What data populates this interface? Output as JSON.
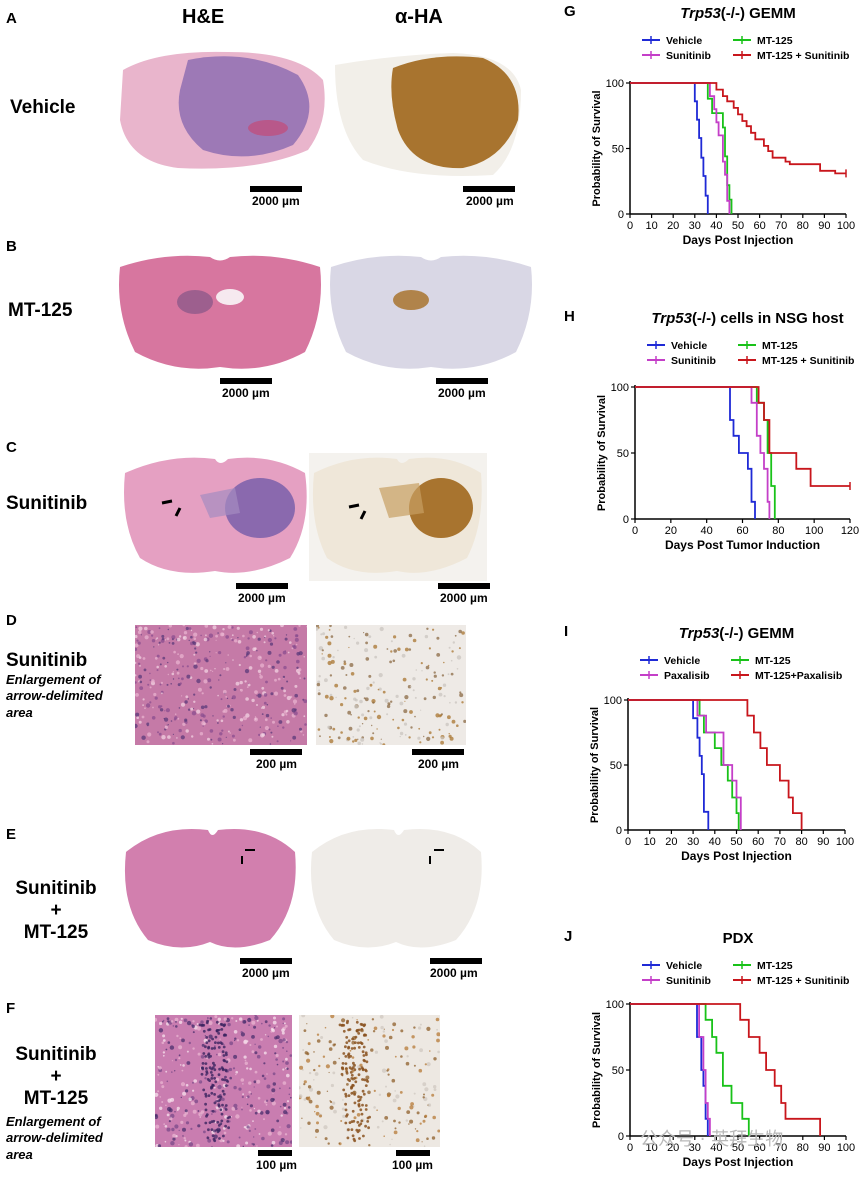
{
  "headers": {
    "he": "H&E",
    "ha": "α-HA"
  },
  "panels": {
    "A": {
      "letter": "A",
      "condition": "Vehicle",
      "scale_he": "2000 µm",
      "scale_ha": "2000 µm"
    },
    "B": {
      "letter": "B",
      "condition": "MT-125",
      "scale_he": "2000 µm",
      "scale_ha": "2000 µm"
    },
    "C": {
      "letter": "C",
      "condition": "Sunitinib",
      "scale_he": "2000 µm",
      "scale_ha": "2000 µm"
    },
    "D": {
      "letter": "D",
      "condition": "Sunitinib",
      "subtitle": [
        "Enlargement of",
        "arrow-delimited",
        "area"
      ],
      "scale_he": "200 µm",
      "scale_ha": "200 µm"
    },
    "E": {
      "letter": "E",
      "condition": [
        "Sunitinib",
        "+",
        "MT-125"
      ],
      "scale_he": "2000 µm",
      "scale_ha": "2000 µm"
    },
    "F": {
      "letter": "F",
      "condition": [
        "Sunitinib",
        "+",
        "MT-125"
      ],
      "subtitle": [
        "Enlargement of",
        "arrow-delimited",
        "area"
      ],
      "scale_he": "100 µm",
      "scale_ha": "100 µm"
    }
  },
  "colors": {
    "vehicle": "#1f2ad6",
    "mt125": "#19c219",
    "sunitinib": "#c43fc8",
    "paxalisib": "#c43fc8",
    "combo": "#c8161c",
    "he_pink": "#e9a9c6",
    "he_purple": "#9a73b5",
    "ha_brown": "#a8742f"
  },
  "watermark": "公众号 · 英拜生物",
  "chart_data": [
    {
      "id": "G",
      "type": "line",
      "letter": "G",
      "title": [
        "Trp53",
        "(-/-) GEMM"
      ],
      "xlabel": "Days Post Injection",
      "ylabel": "Probability of Survival",
      "xlim": [
        0,
        100
      ],
      "ylim": [
        0,
        100
      ],
      "xticks": [
        0,
        10,
        20,
        30,
        40,
        50,
        60,
        70,
        80,
        90,
        100
      ],
      "yticks": [
        0,
        50,
        100
      ],
      "legend": [
        "Vehicle",
        "MT-125",
        "Sunitinib",
        "MT-125 + Sunitinib"
      ],
      "series": [
        {
          "name": "Vehicle",
          "color": "#1f2ad6",
          "x": [
            0,
            30,
            31,
            32,
            33,
            34,
            35,
            36
          ],
          "y": [
            100,
            86,
            72,
            58,
            43,
            29,
            14,
            0
          ]
        },
        {
          "name": "MT-125",
          "color": "#19c219",
          "x": [
            0,
            36,
            38,
            41,
            43,
            44,
            45,
            46,
            47
          ],
          "y": [
            100,
            88,
            77,
            77,
            66,
            44,
            22,
            11,
            0
          ]
        },
        {
          "name": "Sunitinib",
          "color": "#c43fc8",
          "x": [
            0,
            37,
            39,
            40,
            41,
            43,
            44,
            45,
            46
          ],
          "y": [
            100,
            90,
            80,
            70,
            60,
            40,
            30,
            10,
            0
          ]
        },
        {
          "name": "MT-125 + Sunitinib",
          "color": "#c8161c",
          "x": [
            0,
            40,
            43,
            45,
            48,
            50,
            52,
            54,
            56,
            58,
            62,
            64,
            66,
            68,
            72,
            74,
            78,
            88,
            95,
            100
          ],
          "y": [
            100,
            95,
            90,
            86,
            81,
            76,
            71,
            67,
            62,
            57,
            52,
            48,
            43,
            43,
            40,
            38,
            38,
            33,
            31,
            31
          ]
        }
      ]
    },
    {
      "id": "H",
      "type": "line",
      "letter": "H",
      "title": [
        "Trp53",
        "(-/-) cells in NSG host"
      ],
      "xlabel": "Days Post Tumor Induction",
      "ylabel": "Probability of Survival",
      "xlim": [
        0,
        120
      ],
      "ylim": [
        0,
        100
      ],
      "xticks": [
        0,
        20,
        40,
        60,
        80,
        100,
        120
      ],
      "yticks": [
        0,
        50,
        100
      ],
      "legend": [
        "Vehicle",
        "MT-125",
        "Sunitinib",
        "MT-125 + Sunitinib"
      ],
      "series": [
        {
          "name": "Vehicle",
          "color": "#1f2ad6",
          "x": [
            0,
            53,
            55,
            58,
            63,
            65,
            67
          ],
          "y": [
            100,
            75,
            63,
            50,
            38,
            13,
            0
          ]
        },
        {
          "name": "MT-125",
          "color": "#19c219",
          "x": [
            0,
            68,
            72,
            74,
            76,
            78
          ],
          "y": [
            100,
            88,
            75,
            50,
            25,
            0
          ]
        },
        {
          "name": "Sunitinib",
          "color": "#c43fc8",
          "x": [
            0,
            65,
            68,
            70,
            72,
            74,
            75
          ],
          "y": [
            100,
            88,
            63,
            50,
            38,
            13,
            0
          ]
        },
        {
          "name": "MT-125 + Sunitinib",
          "color": "#c8161c",
          "x": [
            0,
            69,
            72,
            75,
            79,
            90,
            98,
            120
          ],
          "y": [
            100,
            88,
            75,
            50,
            50,
            38,
            25,
            25
          ]
        }
      ]
    },
    {
      "id": "I",
      "type": "line",
      "letter": "I",
      "title": [
        "Trp53",
        "(-/-) GEMM"
      ],
      "xlabel": "Days Post Injection",
      "ylabel": "Probability of Survival",
      "xlim": [
        0,
        100
      ],
      "ylim": [
        0,
        100
      ],
      "xticks": [
        0,
        10,
        20,
        30,
        40,
        50,
        60,
        70,
        80,
        90,
        100
      ],
      "yticks": [
        0,
        50,
        100
      ],
      "legend": [
        "Vehicle",
        "MT-125",
        "Paxalisib",
        "MT-125+Paxalisib"
      ],
      "series": [
        {
          "name": "Vehicle",
          "color": "#1f2ad6",
          "x": [
            0,
            30,
            32,
            33,
            34,
            35,
            37
          ],
          "y": [
            100,
            86,
            71,
            57,
            43,
            14,
            0
          ]
        },
        {
          "name": "MT-125",
          "color": "#19c219",
          "x": [
            0,
            33,
            35,
            40,
            43,
            46,
            48,
            50,
            51
          ],
          "y": [
            100,
            88,
            75,
            63,
            50,
            38,
            25,
            13,
            0
          ]
        },
        {
          "name": "Paxalisib",
          "color": "#c43fc8",
          "x": [
            0,
            32,
            36,
            40,
            44,
            48,
            50,
            52
          ],
          "y": [
            100,
            88,
            75,
            75,
            50,
            38,
            25,
            0
          ]
        },
        {
          "name": "MT-125+Paxalisib",
          "color": "#c8161c",
          "x": [
            0,
            55,
            58,
            61,
            64,
            70,
            74,
            76,
            80
          ],
          "y": [
            100,
            88,
            75,
            63,
            50,
            38,
            25,
            13,
            0
          ]
        }
      ]
    },
    {
      "id": "J",
      "type": "line",
      "letter": "J",
      "title": [
        "PDX"
      ],
      "xlabel": "Days Post Injection",
      "ylabel": "Probability of Survival",
      "xlim": [
        0,
        100
      ],
      "ylim": [
        0,
        100
      ],
      "xticks": [
        0,
        10,
        20,
        30,
        40,
        50,
        60,
        70,
        80,
        90,
        100
      ],
      "yticks": [
        0,
        50,
        100
      ],
      "legend": [
        "Vehicle",
        "MT-125",
        "Sunitinib",
        "MT-125 + Sunitinib"
      ],
      "series": [
        {
          "name": "Vehicle",
          "color": "#1f2ad6",
          "x": [
            0,
            31,
            33,
            34,
            35,
            36
          ],
          "y": [
            100,
            75,
            50,
            38,
            13,
            0
          ]
        },
        {
          "name": "MT-125",
          "color": "#19c219",
          "x": [
            0,
            35,
            38,
            40,
            43,
            47,
            52,
            55
          ],
          "y": [
            100,
            88,
            75,
            63,
            38,
            25,
            13,
            0
          ]
        },
        {
          "name": "Sunitinib",
          "color": "#c43fc8",
          "x": [
            0,
            32,
            34,
            35,
            36,
            37
          ],
          "y": [
            100,
            75,
            50,
            25,
            13,
            0
          ]
        },
        {
          "name": "MT-125 + Sunitinib",
          "color": "#c8161c",
          "x": [
            0,
            51,
            55,
            60,
            63,
            67,
            70,
            72,
            87,
            88
          ],
          "y": [
            100,
            88,
            75,
            63,
            50,
            38,
            25,
            13,
            13,
            0
          ]
        }
      ]
    }
  ]
}
